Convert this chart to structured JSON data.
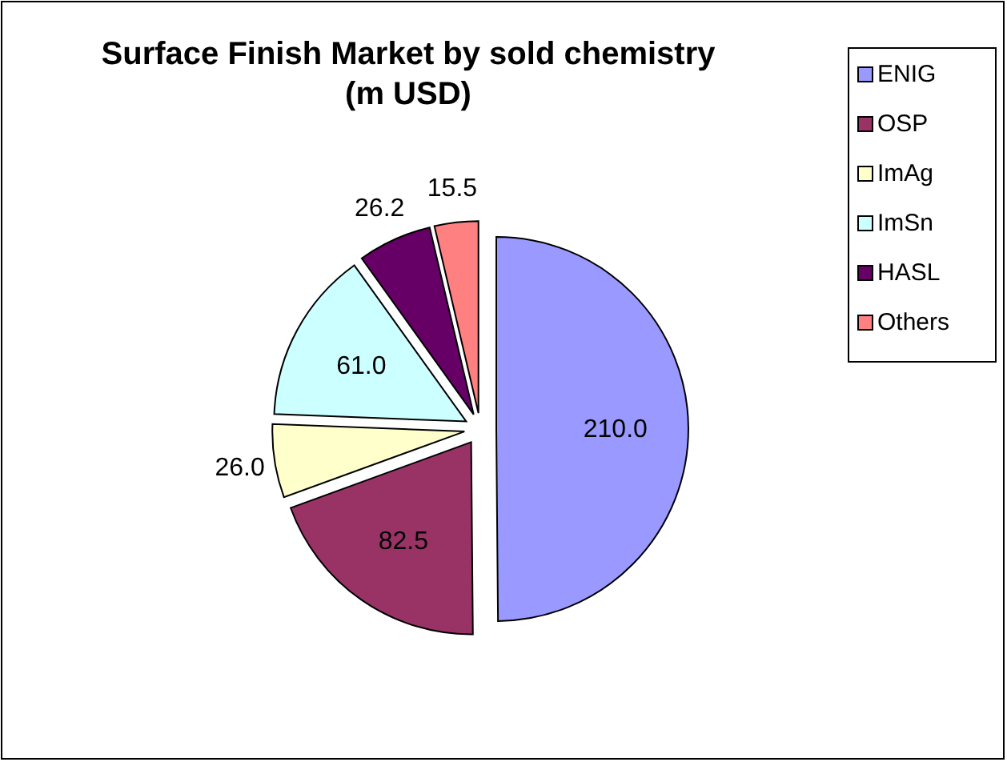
{
  "chart_data": {
    "type": "pie",
    "title": "Surface Finish Market by sold chemistry\n(m USD)",
    "categories": [
      "ENIG",
      "OSP",
      "ImAg",
      "ImSn",
      "HASL",
      "Others"
    ],
    "values": [
      210.0,
      82.5,
      26.0,
      61.0,
      26.2,
      15.5
    ],
    "value_labels": [
      "210.0",
      "82.5",
      "26.0",
      "61.0",
      "26.2",
      "15.5"
    ],
    "colors": [
      "#9999ff",
      "#993366",
      "#ffffcc",
      "#ccffff",
      "#660066",
      "#ff8080"
    ],
    "legend": "top right"
  }
}
